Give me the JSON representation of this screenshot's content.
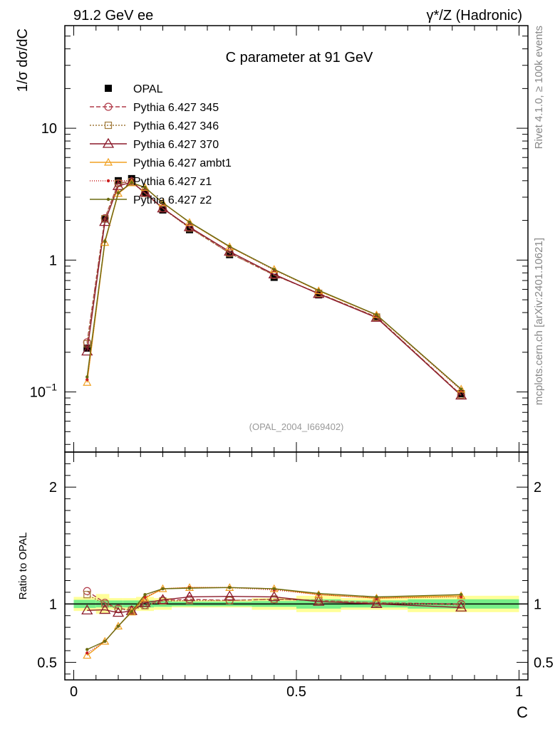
{
  "header": {
    "left": "91.2 GeV ee",
    "right": "γ*/Z (Hadronic)"
  },
  "side_labels": {
    "top": "Rivet 4.1.0, ≥ 100k events",
    "bottom": "mcplots.cern.ch [arXiv:2401.10621]"
  },
  "chart_data": [
    {
      "type": "line",
      "title": "C parameter at 91 GeV",
      "ylabel": "1/σ  dσ/dC",
      "xlabel": "",
      "yscale": "log",
      "ylim": [
        0.035,
        60
      ],
      "xlim": [
        -0.02,
        1.02
      ],
      "watermark": "(OPAL_2004_I669402)",
      "yticks": [
        {
          "v": 0.1,
          "label": "10",
          "sup": "−1"
        },
        {
          "v": 1,
          "label": "1",
          "sup": ""
        },
        {
          "v": 10,
          "label": "10",
          "sup": ""
        }
      ],
      "x": [
        0.03,
        0.07,
        0.1,
        0.13,
        0.16,
        0.2,
        0.26,
        0.35,
        0.45,
        0.55,
        0.68,
        0.87
      ],
      "bin_edges": [
        0.0,
        0.05,
        0.08,
        0.11,
        0.14,
        0.18,
        0.22,
        0.3,
        0.4,
        0.5,
        0.6,
        0.75,
        1.0
      ],
      "legend": {
        "position": "top-left"
      },
      "series": [
        {
          "name": "OPAL",
          "role": "data",
          "color": "#000000",
          "marker": "filled-square",
          "values": [
            0.215,
            2.05,
            4.0,
            4.15,
            3.25,
            2.4,
            1.7,
            1.1,
            0.74,
            0.545,
            0.365,
            0.097
          ]
        },
        {
          "name": "Pythia 6.427 345",
          "color": "#b03a48",
          "dash": "6,3",
          "marker": "open-circle",
          "values": [
            0.238,
            2.08,
            3.83,
            3.95,
            3.22,
            2.47,
            1.76,
            1.13,
            0.77,
            0.56,
            0.37,
            0.095
          ]
        },
        {
          "name": "Pythia 6.427 346",
          "color": "#a07a3a",
          "dash": "2,2",
          "marker": "open-square",
          "values": [
            0.232,
            2.06,
            3.82,
            3.93,
            3.21,
            2.46,
            1.75,
            1.13,
            0.77,
            0.56,
            0.37,
            0.095
          ]
        },
        {
          "name": "Pythia 6.427 370",
          "color": "#8b1a2b",
          "dash": "",
          "marker": "open-triangle",
          "values": [
            0.203,
            1.95,
            3.65,
            3.9,
            3.25,
            2.47,
            1.78,
            1.16,
            0.78,
            0.555,
            0.366,
            0.094
          ]
        },
        {
          "name": "Pythia 6.427 ambt1",
          "color": "#f0a020",
          "dash": "",
          "marker": "open-triangle-small",
          "values": [
            0.118,
            1.36,
            3.2,
            3.85,
            3.55,
            2.72,
            1.93,
            1.26,
            0.85,
            0.585,
            0.384,
            0.105
          ]
        },
        {
          "name": "Pythia 6.427 z1",
          "color": "#cc2020",
          "dash": "1,2",
          "marker": "dot",
          "values": [
            0.124,
            1.38,
            3.22,
            3.85,
            3.55,
            2.71,
            1.93,
            1.26,
            0.84,
            0.588,
            0.382,
            0.103
          ]
        },
        {
          "name": "Pythia 6.427 z2",
          "color": "#6b6b10",
          "dash": "",
          "marker": "dot",
          "values": [
            0.13,
            1.39,
            3.24,
            3.87,
            3.56,
            2.72,
            1.94,
            1.27,
            0.85,
            0.59,
            0.385,
            0.105
          ]
        }
      ]
    },
    {
      "type": "line",
      "title": "",
      "ylabel": "Ratio to OPAL",
      "xlabel": "C",
      "ylim": [
        0.35,
        2.3
      ],
      "yticks": [
        {
          "v": 0.5,
          "label": "0.5"
        },
        {
          "v": 1,
          "label": "1"
        },
        {
          "v": 2,
          "label": "2"
        }
      ],
      "xticks": [
        {
          "v": 0,
          "label": "0"
        },
        {
          "v": 0.5,
          "label": "0.5"
        },
        {
          "v": 1,
          "label": "1"
        }
      ],
      "band_stat": [
        0.035,
        0.03,
        0.03,
        0.03,
        0.03,
        0.025,
        0.02,
        0.02,
        0.025,
        0.04,
        0.03,
        0.04
      ],
      "band_total": [
        0.06,
        0.085,
        0.05,
        0.05,
        0.06,
        0.05,
        0.03,
        0.03,
        0.05,
        0.07,
        0.05,
        0.07
      ],
      "series": [
        {
          "name": "Pythia 6.427 345",
          "values": [
            1.11,
            1.01,
            0.96,
            0.95,
            0.99,
            1.03,
            1.04,
            1.03,
            1.04,
            1.03,
            1.01,
            1.0
          ]
        },
        {
          "name": "Pythia 6.427 346",
          "values": [
            1.08,
            1.0,
            0.955,
            0.945,
            0.985,
            1.025,
            1.03,
            1.03,
            1.04,
            1.03,
            1.01,
            0.99
          ]
        },
        {
          "name": "Pythia 6.427 370",
          "values": [
            0.945,
            0.95,
            0.925,
            0.94,
            1.01,
            1.035,
            1.06,
            1.065,
            1.06,
            1.02,
            1.0,
            0.97
          ]
        },
        {
          "name": "Pythia 6.427 ambt1",
          "values": [
            0.56,
            0.68,
            0.81,
            0.93,
            1.05,
            1.13,
            1.14,
            1.14,
            1.13,
            1.08,
            1.05,
            1.07
          ]
        },
        {
          "name": "Pythia 6.427 z1",
          "values": [
            0.58,
            0.68,
            0.81,
            0.93,
            1.06,
            1.13,
            1.14,
            1.14,
            1.12,
            1.08,
            1.05,
            1.06
          ]
        },
        {
          "name": "Pythia 6.427 z2",
          "values": [
            0.61,
            0.68,
            0.81,
            0.935,
            1.08,
            1.13,
            1.135,
            1.14,
            1.13,
            1.09,
            1.06,
            1.08
          ]
        }
      ]
    }
  ]
}
